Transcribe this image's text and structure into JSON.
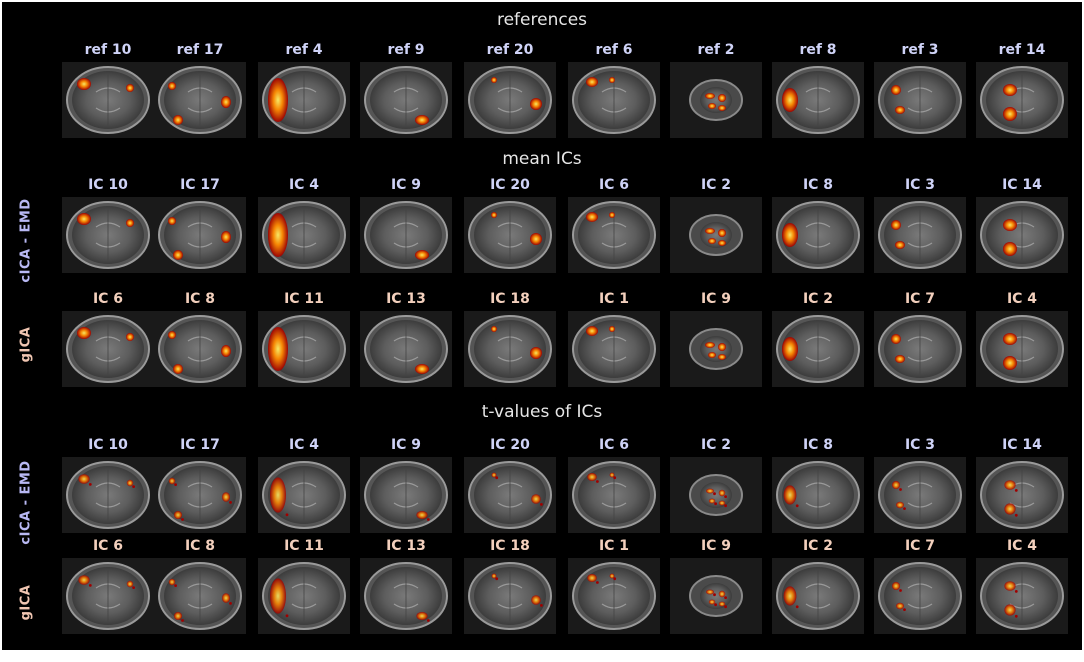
{
  "sections": {
    "references": "references",
    "mean": "mean ICs",
    "tvalues": "t-values of ICs"
  },
  "row_labels": {
    "cica": "cICA - EMD",
    "gica": "gICA"
  },
  "colors": {
    "background": "#000000",
    "caption_blue": "#cfd3f7",
    "caption_peach": "#f3d0bd",
    "activation_core": "#fff066",
    "activation_mid": "#ff8a00",
    "activation_edge": "#a00000"
  },
  "rows": [
    {
      "id": "ref",
      "section": "references",
      "labels": [
        "ref 10",
        "ref 17",
        "ref 4",
        "ref 9",
        "ref 20",
        "ref 6",
        "ref 2",
        "ref 8",
        "ref 3",
        "ref 14"
      ]
    },
    {
      "id": "mean-cica",
      "section": "mean ICs",
      "method": "cICA - EMD",
      "labels": [
        "IC 10",
        "IC 17",
        "IC 4",
        "IC 9",
        "IC 20",
        "IC 6",
        "IC 2",
        "IC 8",
        "IC 3",
        "IC 14"
      ]
    },
    {
      "id": "mean-gica",
      "section": "mean ICs",
      "method": "gICA",
      "labels": [
        "IC 6",
        "IC 8",
        "IC 11",
        "IC 13",
        "IC 18",
        "IC 1",
        "IC 9",
        "IC 2",
        "IC 7",
        "IC 4"
      ]
    },
    {
      "id": "t-cica",
      "section": "t-values of ICs",
      "method": "cICA - EMD",
      "labels": [
        "IC 10",
        "IC 17",
        "IC 4",
        "IC 9",
        "IC 20",
        "IC 6",
        "IC 2",
        "IC 8",
        "IC 3",
        "IC 14"
      ]
    },
    {
      "id": "t-gica",
      "section": "t-values of ICs",
      "method": "gICA",
      "labels": [
        "IC 6",
        "IC 8",
        "IC 11",
        "IC 13",
        "IC 18",
        "IC 1",
        "IC 9",
        "IC 2",
        "IC 7",
        "IC 4"
      ]
    }
  ]
}
